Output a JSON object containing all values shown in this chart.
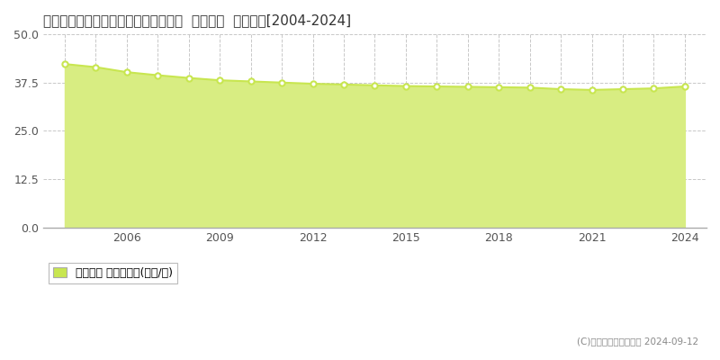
{
  "title": "愛知県知多市にしの台４丁目７番３外  地価公示  地価推移[2004-2024]",
  "years": [
    2004,
    2005,
    2006,
    2007,
    2008,
    2009,
    2010,
    2011,
    2012,
    2013,
    2014,
    2015,
    2016,
    2017,
    2018,
    2019,
    2020,
    2021,
    2022,
    2023,
    2024
  ],
  "values": [
    42.3,
    41.5,
    40.2,
    39.4,
    38.7,
    38.1,
    37.8,
    37.5,
    37.2,
    37.0,
    36.8,
    36.6,
    36.5,
    36.4,
    36.3,
    36.2,
    35.8,
    35.6,
    35.8,
    36.0,
    36.5
  ],
  "ylim": [
    0,
    50
  ],
  "yticks": [
    0,
    12.5,
    25,
    37.5,
    50
  ],
  "xticks": [
    2006,
    2009,
    2012,
    2015,
    2018,
    2021,
    2024
  ],
  "xlim_left": 2003.3,
  "xlim_right": 2024.7,
  "line_color": "#c8e650",
  "fill_color": "#d8ed82",
  "fill_alpha": 1.0,
  "marker_face": "#ffffff",
  "marker_edge": "#c8e650",
  "grid_color": "#c8c8c8",
  "background_color": "#ffffff",
  "plot_bg_color": "#ffffff",
  "legend_label": "地価公示 平均坪単価(万円/坪)",
  "legend_marker_color": "#c8e650",
  "copyright_text": "(C)土地価格ドットコム 2024-09-12",
  "title_fontsize": 11,
  "tick_fontsize": 9,
  "legend_fontsize": 9,
  "marker_size": 4.5,
  "line_width": 1.5
}
